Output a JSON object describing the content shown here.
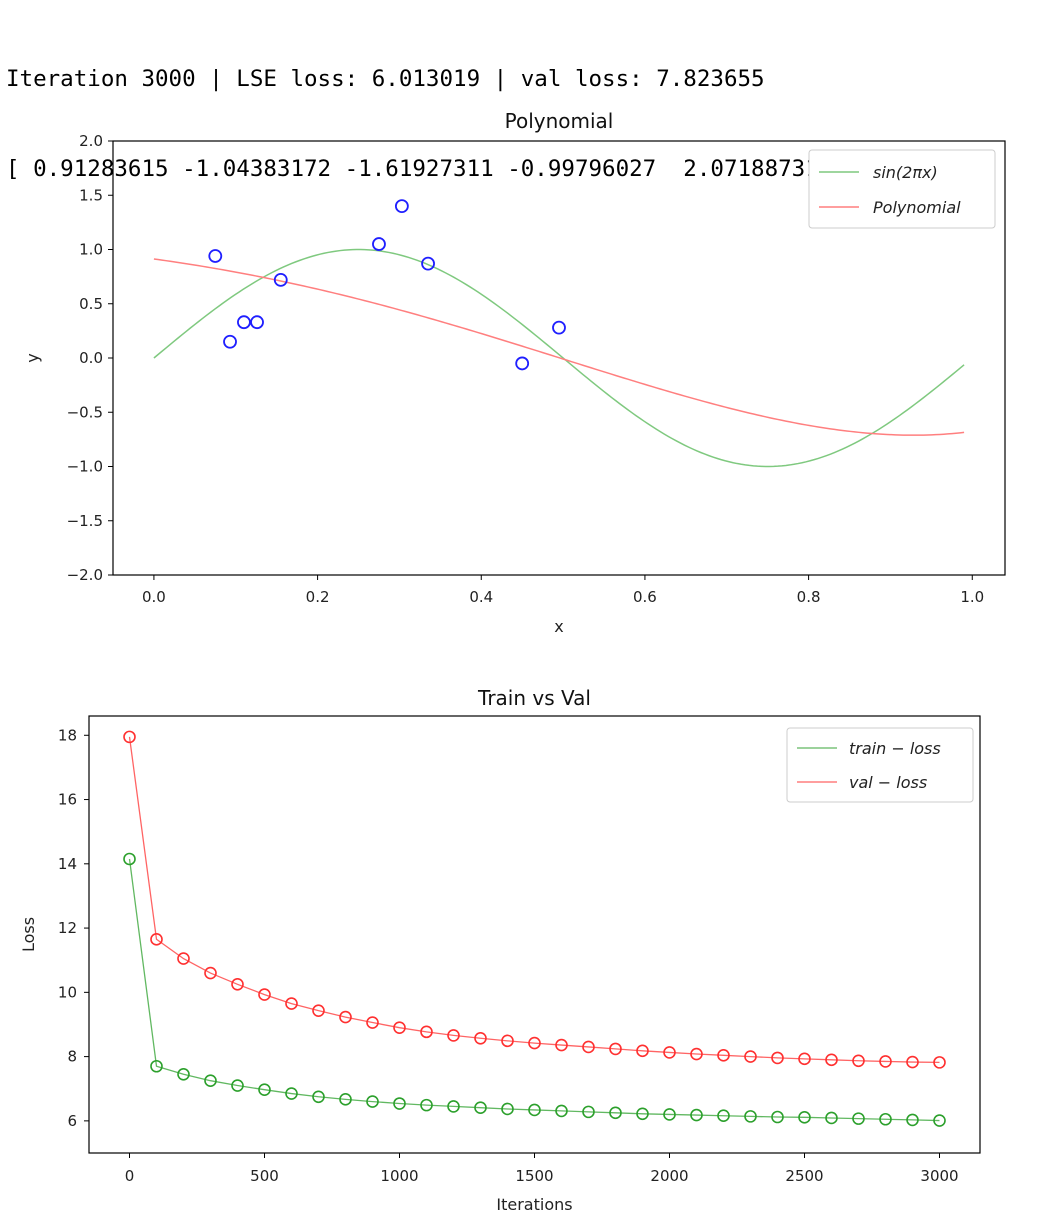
{
  "console": {
    "line1": "Iteration 3000 | LSE loss: 6.013019 | val loss: 7.823655",
    "line2": "[ 0.91283615 -1.04383172 -1.61927311 -0.99796027  2.07188731]"
  },
  "colors": {
    "sin": "#7fc97f",
    "poly": "#ff7f7f",
    "points": "#1f1fff",
    "train": "#2ca02c",
    "val": "#ff3030",
    "axis": "#000000"
  },
  "chart_data": [
    {
      "type": "scatter",
      "title": "Polynomial",
      "xlabel": "x",
      "ylabel": "y",
      "xlim": [
        -0.05,
        1.04
      ],
      "ylim": [
        -2.0,
        2.0
      ],
      "xticks": [
        "0.0",
        "0.2",
        "0.4",
        "0.6",
        "0.8",
        "1.0"
      ],
      "yticks": [
        "2.0",
        "1.5",
        "1.0",
        "0.5",
        "0.0",
        "−0.5",
        "−1.0",
        "−1.5",
        "−2.0"
      ],
      "legend": [
        "sin(2πx)",
        "Polynomial"
      ],
      "legend_position": "top-right",
      "coefficients": [
        0.91283615,
        -1.04383172,
        -1.61927311,
        -0.99796027,
        2.07188731
      ],
      "points": [
        {
          "x": 0.075,
          "y": 0.94
        },
        {
          "x": 0.093,
          "y": 0.15
        },
        {
          "x": 0.11,
          "y": 0.33
        },
        {
          "x": 0.126,
          "y": 0.33
        },
        {
          "x": 0.155,
          "y": 0.72
        },
        {
          "x": 0.275,
          "y": 1.05
        },
        {
          "x": 0.303,
          "y": 1.4
        },
        {
          "x": 0.335,
          "y": 0.87
        },
        {
          "x": 0.45,
          "y": -0.05
        },
        {
          "x": 0.495,
          "y": 0.28
        }
      ]
    },
    {
      "type": "line",
      "title": "Train vs Val",
      "xlabel": "Iterations",
      "ylabel": "Loss",
      "xlim": [
        -150,
        3150
      ],
      "ylim": [
        5.0,
        18.6
      ],
      "xticks": [
        "0",
        "500",
        "1000",
        "1500",
        "2000",
        "2500",
        "3000"
      ],
      "yticks": [
        "18",
        "16",
        "14",
        "12",
        "10",
        "8",
        "6"
      ],
      "legend": [
        "train − loss",
        "val − loss"
      ],
      "legend_position": "top-right",
      "x": [
        0,
        100,
        200,
        300,
        400,
        500,
        600,
        700,
        800,
        900,
        1000,
        1100,
        1200,
        1300,
        1400,
        1500,
        1600,
        1700,
        1800,
        1900,
        2000,
        2100,
        2200,
        2300,
        2400,
        2500,
        2600,
        2700,
        2800,
        2900,
        3000
      ],
      "series": [
        {
          "name": "train − loss",
          "values": [
            14.15,
            7.7,
            7.45,
            7.25,
            7.1,
            6.97,
            6.85,
            6.75,
            6.67,
            6.6,
            6.54,
            6.49,
            6.45,
            6.41,
            6.37,
            6.34,
            6.31,
            6.28,
            6.25,
            6.22,
            6.2,
            6.18,
            6.16,
            6.14,
            6.12,
            6.11,
            6.09,
            6.07,
            6.05,
            6.03,
            6.01
          ]
        },
        {
          "name": "val − loss",
          "values": [
            17.95,
            11.65,
            11.05,
            10.6,
            10.25,
            9.93,
            9.65,
            9.43,
            9.23,
            9.06,
            8.9,
            8.77,
            8.66,
            8.57,
            8.49,
            8.42,
            8.36,
            8.3,
            8.24,
            8.18,
            8.13,
            8.08,
            8.04,
            8.0,
            7.96,
            7.93,
            7.9,
            7.87,
            7.85,
            7.83,
            7.82
          ]
        }
      ]
    }
  ]
}
